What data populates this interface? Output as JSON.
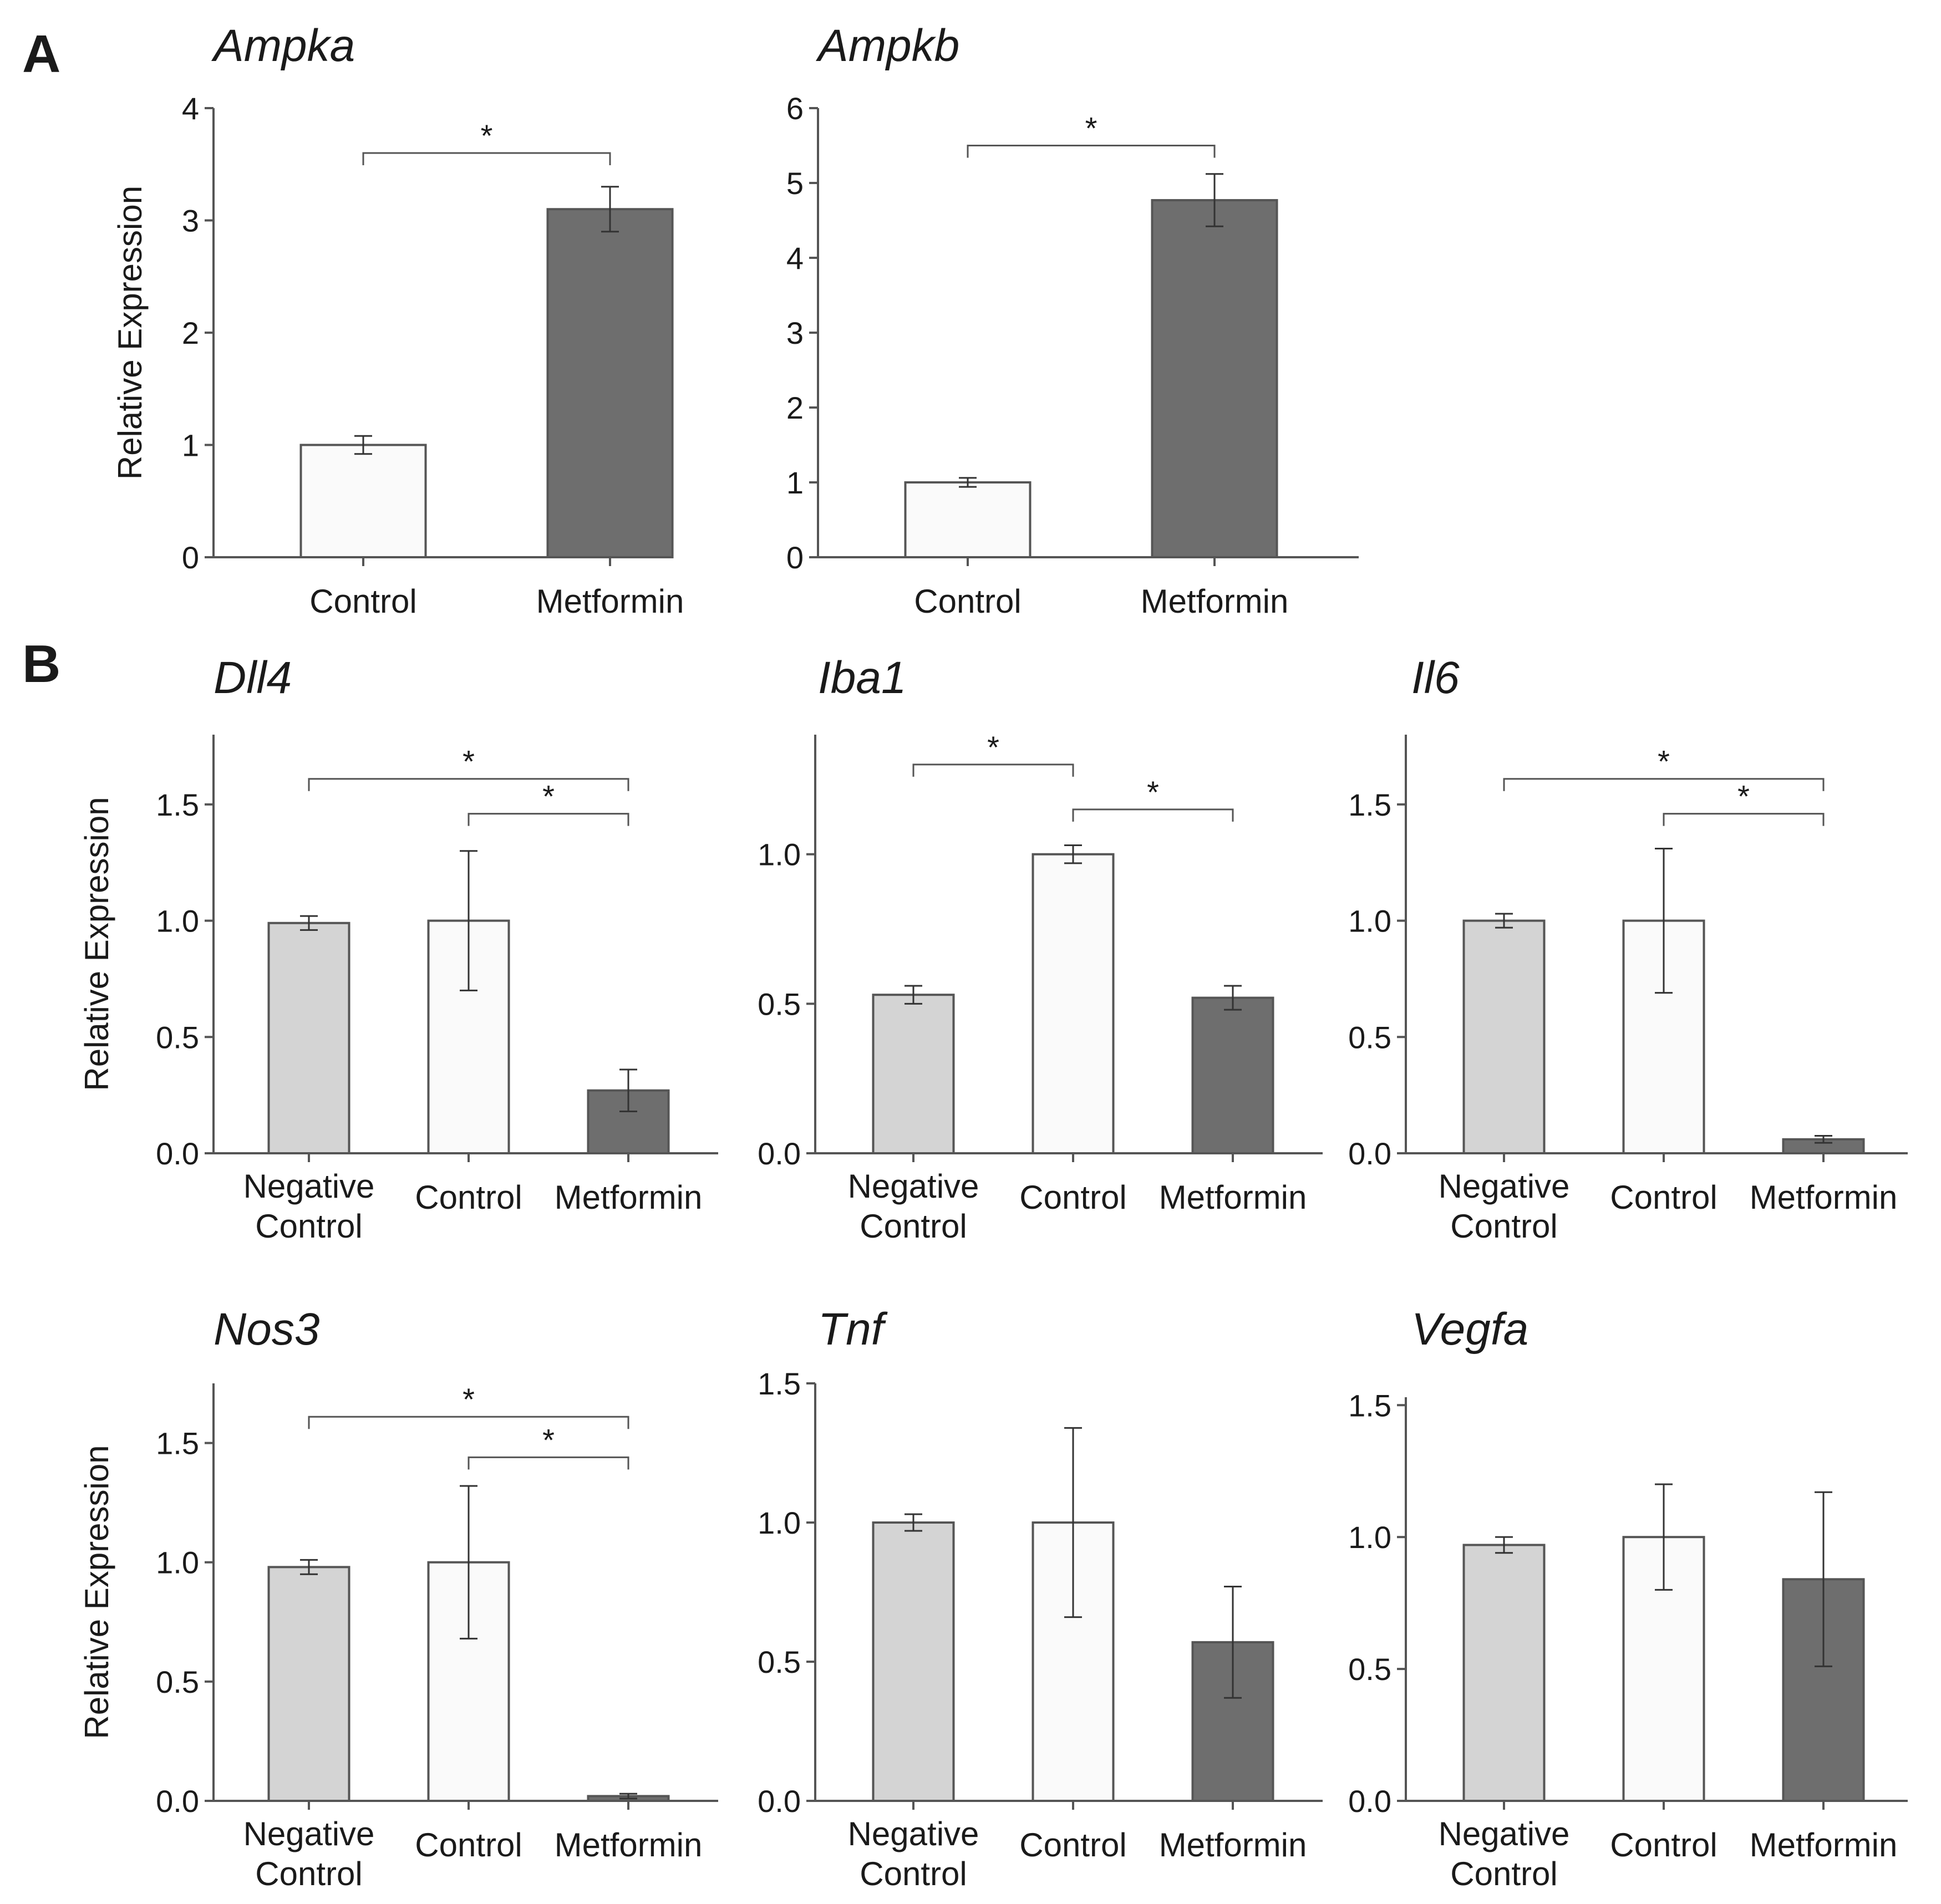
{
  "panels": [
    {
      "letter": "A"
    },
    {
      "letter": "B"
    }
  ],
  "colors": {
    "negative_control": "#d4d4d4",
    "control": "#fafafa",
    "metformin": "#6e6e6e",
    "bar_stroke": "#555555",
    "axis": "#555555"
  },
  "chart_data": [
    {
      "type": "bar",
      "panel": "A",
      "title": "Ampka",
      "ylabel": "Relative Expression",
      "categories": [
        "Control",
        "Metformin"
      ],
      "values": [
        1.0,
        3.1
      ],
      "errors": [
        0.08,
        0.2
      ],
      "ylim": [
        0,
        4
      ],
      "yticks": [
        "0",
        "1",
        "2",
        "3",
        "4"
      ],
      "significance": [
        {
          "from": "Control",
          "to": "Metformin",
          "label": "*",
          "y": 3.6
        }
      ]
    },
    {
      "type": "bar",
      "panel": "A",
      "title": "Ampkb",
      "ylabel": "",
      "categories": [
        "Control",
        "Metformin"
      ],
      "values": [
        1.0,
        4.77
      ],
      "errors": [
        0.06,
        0.35
      ],
      "ylim": [
        0,
        6
      ],
      "yticks": [
        "0",
        "1",
        "2",
        "3",
        "4",
        "5",
        "6"
      ],
      "significance": [
        {
          "from": "Control",
          "to": "Metformin",
          "label": "*",
          "y": 5.5
        }
      ]
    },
    {
      "type": "bar",
      "panel": "B",
      "title": "Dll4",
      "ylabel": "Relative Expression",
      "categories": [
        "Negative Control",
        "Control",
        "Metformin"
      ],
      "values": [
        0.99,
        1.0,
        0.27
      ],
      "errors": [
        0.03,
        0.3,
        0.09
      ],
      "ylim": [
        0,
        1.8
      ],
      "yticks": [
        "0.0",
        "0.5",
        "1.0",
        "1.5"
      ],
      "significance": [
        {
          "from": "Negative Control",
          "to": "Metformin",
          "label": "*",
          "y": 1.61
        },
        {
          "from": "Control",
          "to": "Metformin",
          "label": "*",
          "y": 1.46
        }
      ]
    },
    {
      "type": "bar",
      "panel": "B",
      "title": "Iba1",
      "ylabel": "",
      "categories": [
        "Negative Control",
        "Control",
        "Metformin"
      ],
      "values": [
        0.53,
        1.0,
        0.52
      ],
      "errors": [
        0.03,
        0.03,
        0.04
      ],
      "ylim": [
        0,
        1.4
      ],
      "yticks": [
        "0.0",
        "0.5",
        "1.0"
      ],
      "significance": [
        {
          "from": "Negative Control",
          "to": "Control",
          "label": "*",
          "y": 1.3
        },
        {
          "from": "Control",
          "to": "Metformin",
          "label": "*",
          "y": 1.15
        }
      ]
    },
    {
      "type": "bar",
      "panel": "B",
      "title": "Il6",
      "ylabel": "",
      "categories": [
        "Negative Control",
        "Control",
        "Metformin"
      ],
      "values": [
        1.0,
        1.0,
        0.06
      ],
      "errors": [
        0.03,
        0.31,
        0.015
      ],
      "ylim": [
        0,
        1.8
      ],
      "yticks": [
        "0.0",
        "0.5",
        "1.0",
        "1.5"
      ],
      "significance": [
        {
          "from": "Negative Control",
          "to": "Metformin",
          "label": "*",
          "y": 1.61
        },
        {
          "from": "Control",
          "to": "Metformin",
          "label": "*",
          "y": 1.46
        }
      ]
    },
    {
      "type": "bar",
      "panel": "B",
      "title": "Nos3",
      "ylabel": "Relative Expression",
      "categories": [
        "Negative Control",
        "Control",
        "Metformin"
      ],
      "values": [
        0.98,
        1.0,
        0.02
      ],
      "errors": [
        0.03,
        0.32,
        0.01
      ],
      "ylim": [
        0,
        1.75
      ],
      "yticks": [
        "0.0",
        "0.5",
        "1.0",
        "1.5"
      ],
      "significance": [
        {
          "from": "Negative Control",
          "to": "Metformin",
          "label": "*",
          "y": 1.61
        },
        {
          "from": "Control",
          "to": "Metformin",
          "label": "*",
          "y": 1.44
        }
      ]
    },
    {
      "type": "bar",
      "panel": "B",
      "title": "Tnf",
      "ylabel": "",
      "categories": [
        "Negative Control",
        "Control",
        "Metformin"
      ],
      "values": [
        1.0,
        1.0,
        0.57
      ],
      "errors": [
        0.03,
        0.34,
        0.2
      ],
      "ylim": [
        0,
        1.5
      ],
      "yticks": [
        "0.0",
        "0.5",
        "1.0",
        "1.5"
      ],
      "significance": []
    },
    {
      "type": "bar",
      "panel": "B",
      "title": "Vegfa",
      "ylabel": "",
      "categories": [
        "Negative Control",
        "Control",
        "Metformin"
      ],
      "values": [
        0.97,
        1.0,
        0.84
      ],
      "errors": [
        0.03,
        0.2,
        0.33
      ],
      "ylim": [
        0,
        1.53
      ],
      "yticks": [
        "0.0",
        "0.5",
        "1.0",
        "1.5"
      ],
      "significance": []
    }
  ]
}
